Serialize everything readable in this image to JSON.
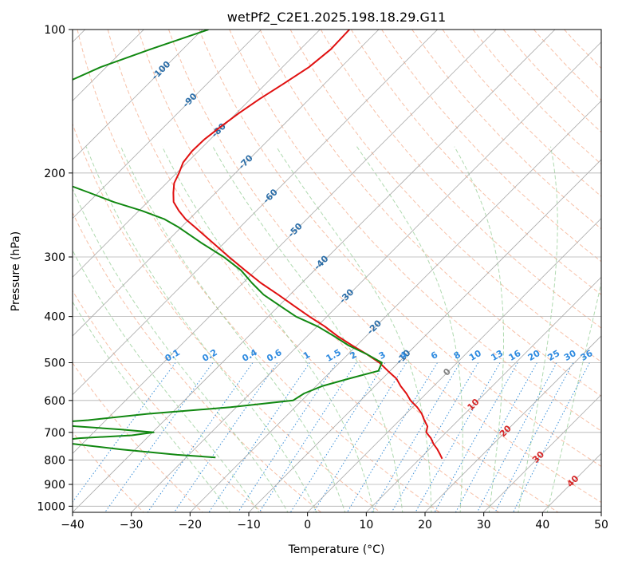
{
  "chart_data": {
    "type": "line",
    "title": "wetPf2_C2E1.2025.198.18.29.G11",
    "xlabel": "Temperature (°C)",
    "ylabel": "Pressure (hPa)",
    "xlim": [
      -40,
      50
    ],
    "ylim": [
      1030,
      100
    ],
    "y_scale": "log",
    "x_ticks": [
      -40,
      -30,
      -20,
      -10,
      0,
      10,
      20,
      30,
      40,
      50
    ],
    "x_tick_labels": [
      "−40",
      "−30",
      "−20",
      "−10",
      "0",
      "10",
      "20",
      "30",
      "40",
      "50"
    ],
    "y_ticks": [
      100,
      200,
      300,
      400,
      500,
      600,
      700,
      800,
      900,
      1000
    ],
    "y_tick_labels": [
      "100",
      "200",
      "300",
      "400",
      "500",
      "600",
      "700",
      "800",
      "900",
      "1000"
    ],
    "grid": true,
    "colors": {
      "temperature": "#e01010",
      "dewpoint": "#118811",
      "isotherm": "#a9a9a9",
      "dry_adiabat": "#f4a582",
      "moist_adiabat": "#8fca8f",
      "mixing_ratio": "#3a8fd8",
      "isotherm_label": "#2c6ea8",
      "pos_label": "#d62728",
      "zero_label": "#808080",
      "mixing_label": "#2f8be0"
    },
    "isotherm_labels": [
      {
        "temp": -100,
        "p": 122,
        "text": "-100"
      },
      {
        "temp": -90,
        "p": 141,
        "text": "-90"
      },
      {
        "temp": -80,
        "p": 163,
        "text": "-80"
      },
      {
        "temp": -70,
        "p": 190,
        "text": "-70"
      },
      {
        "temp": -60,
        "p": 224,
        "text": "-60"
      },
      {
        "temp": -50,
        "p": 264,
        "text": "-50"
      },
      {
        "temp": -40,
        "p": 309,
        "text": "-40"
      },
      {
        "temp": -30,
        "p": 363,
        "text": "-30"
      },
      {
        "temp": -20,
        "p": 422,
        "text": "-20"
      },
      {
        "temp": -10,
        "p": 487,
        "text": "-10"
      },
      {
        "temp": 0,
        "p": 524,
        "text": "0"
      },
      {
        "temp": 10,
        "p": 613,
        "text": "10"
      },
      {
        "temp": 20,
        "p": 697,
        "text": "20"
      },
      {
        "temp": 30,
        "p": 790,
        "text": "30"
      },
      {
        "temp": 40,
        "p": 888,
        "text": "40"
      }
    ],
    "mixing_ratio_labels": [
      {
        "w": 0.1,
        "text": "0.1"
      },
      {
        "w": 0.2,
        "text": "0.2"
      },
      {
        "w": 0.4,
        "text": "0.4"
      },
      {
        "w": 0.6,
        "text": "0.6"
      },
      {
        "w": 1,
        "text": "1"
      },
      {
        "w": 1.5,
        "text": "1.5"
      },
      {
        "w": 2,
        "text": "2"
      },
      {
        "w": 3,
        "text": "3"
      },
      {
        "w": 4,
        "text": "4"
      },
      {
        "w": 6,
        "text": "6"
      },
      {
        "w": 8,
        "text": "8"
      },
      {
        "w": 10,
        "text": "10"
      },
      {
        "w": 13,
        "text": "13"
      },
      {
        "w": 16,
        "text": "16"
      },
      {
        "w": 20,
        "text": "20"
      },
      {
        "w": 25,
        "text": "25"
      },
      {
        "w": 30,
        "text": "30"
      },
      {
        "w": 36,
        "text": "36"
      }
    ],
    "series": [
      {
        "points": [
          [
            100,
            -75.0
          ],
          [
            110,
            -74.8
          ],
          [
            120,
            -75.5
          ],
          [
            130,
            -77.0
          ],
          [
            140,
            -78.5
          ],
          [
            150,
            -79.6
          ],
          [
            160,
            -80.4
          ],
          [
            170,
            -81.0
          ],
          [
            180,
            -81.1
          ],
          [
            190,
            -80.7
          ],
          [
            200,
            -79.6
          ],
          [
            210,
            -78.7
          ],
          [
            220,
            -77.2
          ],
          [
            230,
            -75.6
          ],
          [
            240,
            -73.2
          ],
          [
            250,
            -70.6
          ],
          [
            260,
            -67.6
          ],
          [
            280,
            -62.0
          ],
          [
            300,
            -56.8
          ],
          [
            320,
            -51.8
          ],
          [
            340,
            -47.0
          ],
          [
            360,
            -42.0
          ],
          [
            380,
            -37.4
          ],
          [
            400,
            -33.0
          ],
          [
            420,
            -28.6
          ],
          [
            440,
            -24.8
          ],
          [
            460,
            -20.8
          ],
          [
            480,
            -16.8
          ],
          [
            500,
            -13.2
          ],
          [
            520,
            -10.4
          ],
          [
            540,
            -7.6
          ],
          [
            560,
            -5.6
          ],
          [
            580,
            -3.4
          ],
          [
            600,
            -1.5
          ],
          [
            620,
            0.8
          ],
          [
            640,
            2.7
          ],
          [
            660,
            4.2
          ],
          [
            680,
            5.8
          ],
          [
            700,
            6.6
          ],
          [
            720,
            8.4
          ],
          [
            740,
            9.8
          ],
          [
            760,
            11.4
          ],
          [
            780,
            12.8
          ],
          [
            795,
            13.8
          ]
        ]
      },
      {
        "points": [
          [
            100,
            -99.0
          ],
          [
            110,
            -105.5
          ],
          [
            120,
            -111.0
          ],
          [
            130,
            -114.5
          ],
          [
            140,
            -117.5
          ],
          [
            150,
            -121.0
          ],
          [
            160,
            -125.0
          ],
          [
            170,
            -127.0
          ],
          [
            175,
            -129.5
          ],
          [
            180,
            -124.0
          ],
          [
            190,
            -112.5
          ],
          [
            200,
            -104.0
          ],
          [
            210,
            -97.5
          ],
          [
            220,
            -91.5
          ],
          [
            230,
            -85.8
          ],
          [
            240,
            -79.5
          ],
          [
            250,
            -74.2
          ],
          [
            260,
            -70.4
          ],
          [
            280,
            -64.0
          ],
          [
            300,
            -57.7
          ],
          [
            320,
            -52.5
          ],
          [
            340,
            -48.5
          ],
          [
            360,
            -44.5
          ],
          [
            380,
            -39.8
          ],
          [
            400,
            -35.3
          ],
          [
            420,
            -29.8
          ],
          [
            440,
            -25.4
          ],
          [
            460,
            -21.4
          ],
          [
            480,
            -16.8
          ],
          [
            500,
            -12.8
          ],
          [
            520,
            -12.0
          ],
          [
            540,
            -15.7
          ],
          [
            560,
            -19.0
          ],
          [
            580,
            -20.8
          ],
          [
            600,
            -21.5
          ],
          [
            620,
            -31.0
          ],
          [
            640,
            -44.0
          ],
          [
            660,
            -53.0
          ],
          [
            670,
            -60.0
          ],
          [
            680,
            -54.0
          ],
          [
            690,
            -46.0
          ],
          [
            700,
            -39.8
          ],
          [
            710,
            -43.0
          ],
          [
            720,
            -51.5
          ],
          [
            730,
            -55.0
          ],
          [
            740,
            -51.5
          ],
          [
            760,
            -42.5
          ],
          [
            780,
            -32.0
          ],
          [
            790,
            -25.0
          ]
        ]
      }
    ]
  }
}
